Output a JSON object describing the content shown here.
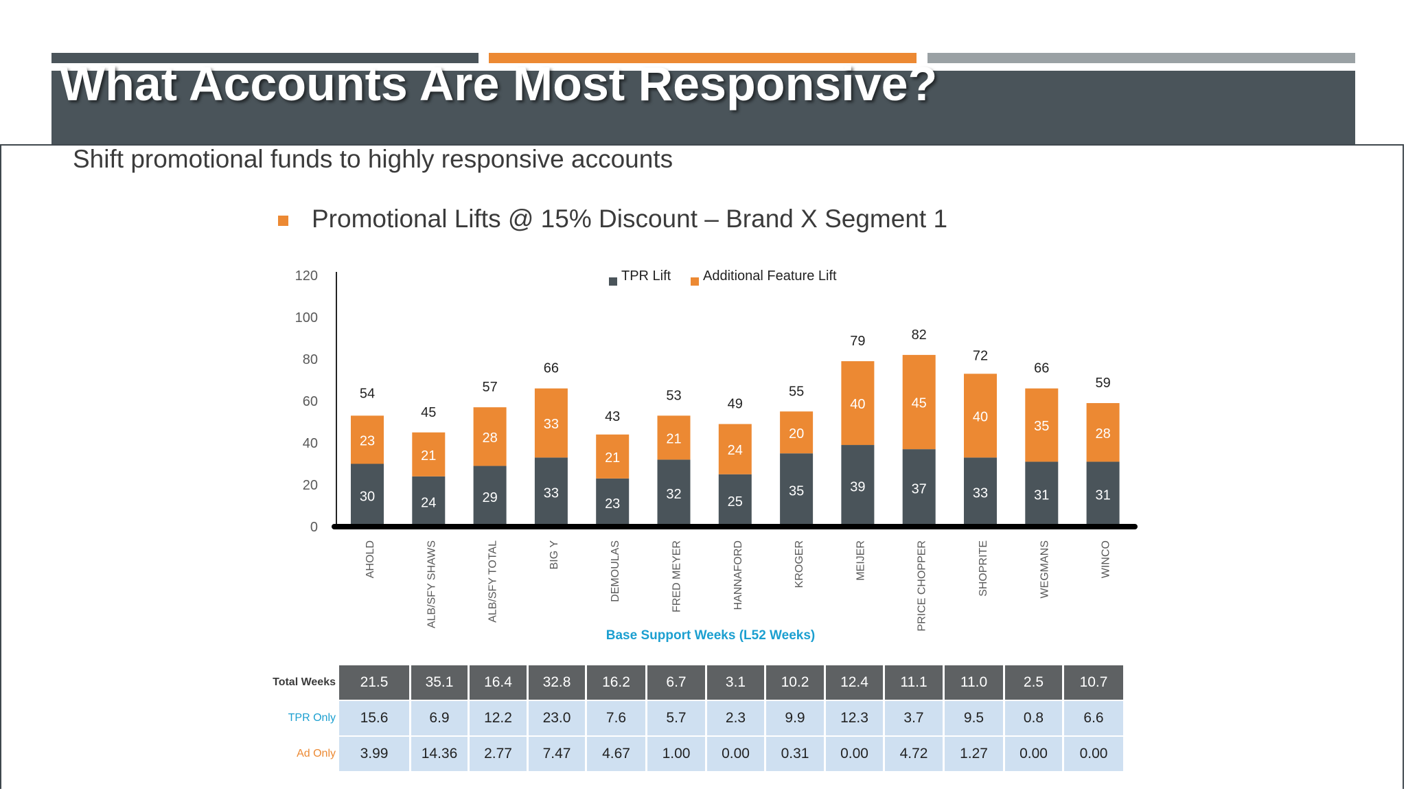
{
  "header": {
    "title": "What Accounts Are Most Responsive?",
    "subtitle": "Shift promotional funds to highly responsive accounts"
  },
  "chart_heading": "Promotional Lifts @ 15% Discount – Brand X Segment 1",
  "colors": {
    "tpr": "#4a545a",
    "feature": "#ec8933",
    "axis_title": "#1b9fd0"
  },
  "chart_data": {
    "type": "bar",
    "stacked": true,
    "categories": [
      "AHOLD",
      "ALB/SFY SHAWS",
      "ALB/SFY TOTAL",
      "BIG Y",
      "DEMOULAS",
      "FRED MEYER",
      "HANNAFORD",
      "KROGER",
      "MEIJER",
      "PRICE CHOPPER",
      "SHOPRITE",
      "WEGMANS",
      "WINCO"
    ],
    "series": [
      {
        "name": "TPR Lift",
        "values": [
          30,
          24,
          29,
          33,
          23,
          32,
          25,
          35,
          39,
          37,
          33,
          31,
          31
        ]
      },
      {
        "name": "Additional Feature Lift",
        "values": [
          23,
          21,
          28,
          33,
          21,
          21,
          24,
          20,
          40,
          45,
          40,
          35,
          28
        ]
      }
    ],
    "totals": [
      54,
      45,
      57,
      66,
      43,
      53,
      49,
      55,
      79,
      82,
      72,
      66,
      59
    ],
    "yticks": [
      "0",
      "20",
      "40",
      "60",
      "80",
      "100",
      "120"
    ],
    "ylim": [
      0,
      120
    ],
    "legend_position": "top-center",
    "xlabel": "Base Support Weeks (L52 Weeks)",
    "grid": false
  },
  "table": {
    "rows": [
      {
        "label": "Total Weeks",
        "values": [
          "21.5",
          "35.1",
          "16.4",
          "32.8",
          "16.2",
          "6.7",
          "3.1",
          "10.2",
          "12.4",
          "11.1",
          "11.0",
          "2.5",
          "10.7"
        ]
      },
      {
        "label": "TPR Only",
        "values": [
          "15.6",
          "6.9",
          "12.2",
          "23.0",
          "7.6",
          "5.7",
          "2.3",
          "9.9",
          "12.3",
          "3.7",
          "9.5",
          "0.8",
          "6.6"
        ]
      },
      {
        "label": "Ad Only",
        "values": [
          "3.99",
          "14.36",
          "2.77",
          "7.47",
          "4.67",
          "1.00",
          "0.00",
          "0.31",
          "0.00",
          "4.72",
          "1.27",
          "0.00",
          "0.00"
        ]
      }
    ]
  }
}
